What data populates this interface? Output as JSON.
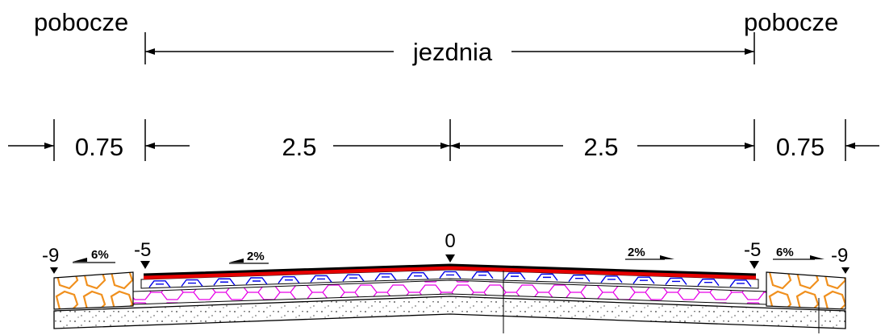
{
  "labels": {
    "shoulder_left": "pobocze",
    "shoulder_right": "pobocze",
    "carriageway": "jezdnia"
  },
  "dimensions": [
    "0.75",
    "2.5",
    "2.5",
    "0.75"
  ],
  "elevations": {
    "left_edge": "-9",
    "left_carriageway_edge": "-5",
    "axis": "0",
    "right_carriageway_edge": "-5",
    "right_edge": "-9"
  },
  "slopes": {
    "left_shoulder": "6%",
    "left_carriageway": "2%",
    "right_carriageway": "2%",
    "right_shoulder": "6%"
  },
  "colors": {
    "wearing_course": "#e60000",
    "binder_course": "#0000e6",
    "base_course": "#e600e6",
    "shoulder_aggregate": "#f0901e",
    "line": "#000000"
  }
}
